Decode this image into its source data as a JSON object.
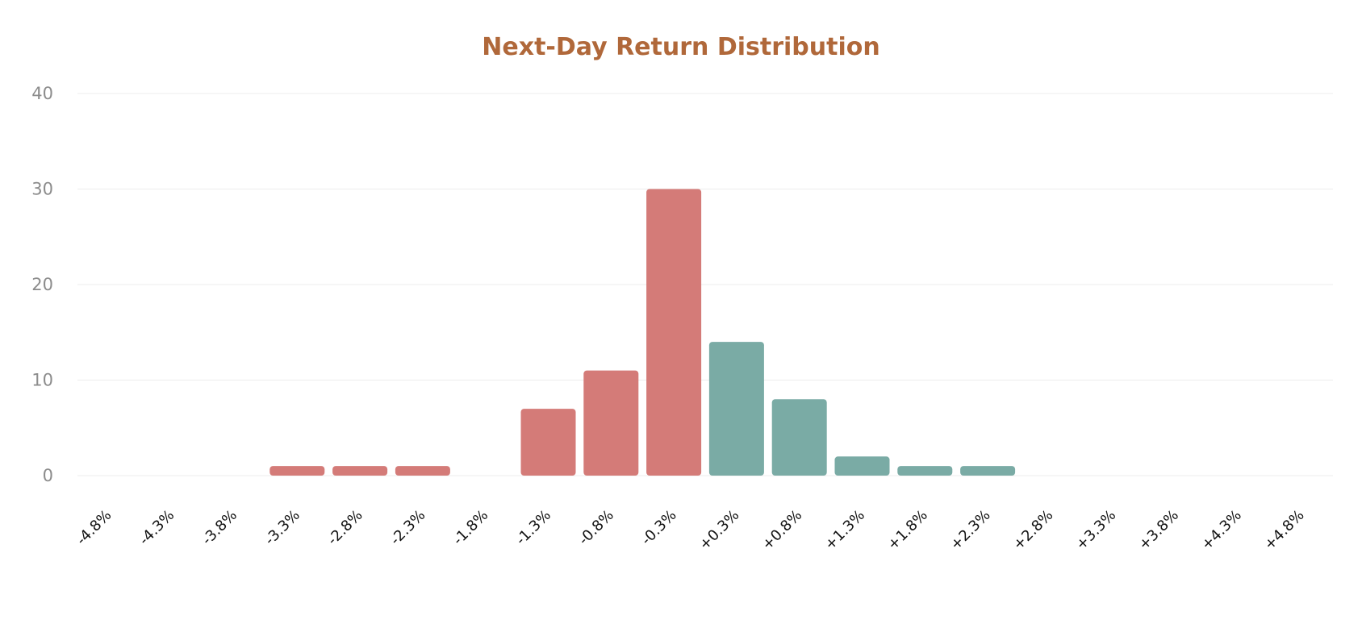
{
  "chart_data": {
    "type": "bar",
    "title": "Next-Day Return Distribution",
    "xlabel": "",
    "ylabel": "",
    "ylim": [
      0,
      40
    ],
    "yticks": [
      "0",
      "10",
      "20",
      "30",
      "40"
    ],
    "grid": true,
    "legend": "none",
    "categories": [
      "-4.8%",
      "-4.3%",
      "-3.8%",
      "-3.3%",
      "-2.8%",
      "-2.3%",
      "-1.8%",
      "-1.3%",
      "-0.8%",
      "-0.3%",
      "+0.3%",
      "+0.8%",
      "+1.3%",
      "+1.8%",
      "+2.3%",
      "+2.8%",
      "+3.3%",
      "+3.8%",
      "+4.3%",
      "+4.8%"
    ],
    "values": [
      0,
      0,
      0,
      1,
      1,
      1,
      0,
      7,
      11,
      30,
      14,
      8,
      2,
      1,
      1,
      0,
      0,
      0,
      0,
      0
    ],
    "colors": {
      "negative": "#d47b78",
      "positive": "#7aaba5",
      "title": "#b0683a"
    }
  }
}
